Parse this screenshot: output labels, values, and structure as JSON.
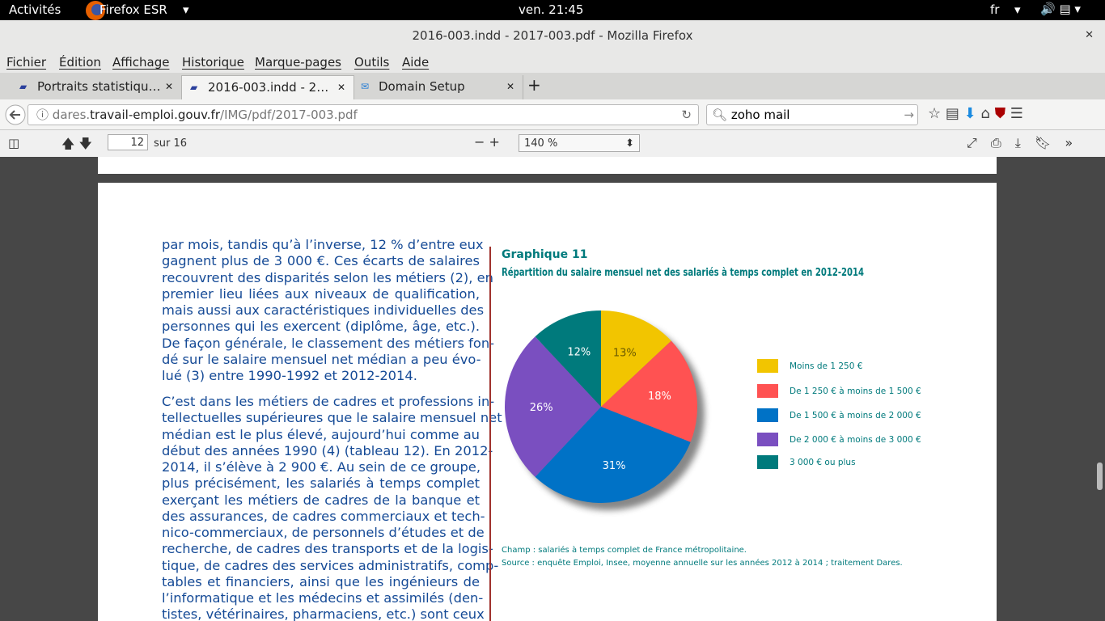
{
  "topbar": {
    "activities": "Activités",
    "app": "Firefox ESR",
    "clock": "ven. 21:45",
    "lang": "fr"
  },
  "window": {
    "title": "2016-003.indd - 2017-003.pdf - Mozilla Firefox"
  },
  "menu": [
    "Fichier",
    "Édition",
    "Affichage",
    "Historique",
    "Marque-pages",
    "Outils",
    "Aide"
  ],
  "tabs": [
    "Portraits statistiqu…",
    "2016-003.indd - 2…",
    "Domain Setup"
  ],
  "address": {
    "sub": "dares.",
    "host": "travail-emploi.gouv.fr",
    "path": "/IMG/pdf/2017-003.pdf"
  },
  "search": "zoho mail",
  "pdf_toolbar": {
    "page": "12",
    "total": "sur 16",
    "zoom": "140 %"
  },
  "document": {
    "paragraphs": [
      [
        "par mois, tandis qu’à l’inverse, 12 % d’entre eux",
        "gagnent plus de 3 000 €. Ces écarts de salaires",
        "recouvrent des disparités selon les métiers (2), en",
        "premier lieu liées aux niveaux de qualification,",
        "mais aussi aux caractéristiques individuelles des",
        "personnes qui les exercent (diplôme, âge, etc.).",
        "De façon générale, le classement des métiers fon-",
        "dé sur le salaire mensuel net médian a peu évo-",
        "lué (3) entre 1990-1992 et 2012-2014."
      ],
      [
        "C’est dans les métiers de cadres et professions in-",
        "tellectuelles supérieures que le salaire mensuel net",
        "médian est le plus élevé, aujourd’hui comme au",
        "début des années 1990 (4) (tableau 12). En 2012-",
        "2014, il s’élève à 2 900 €. Au sein de ce groupe,",
        "plus précisément, les salariés à temps complet",
        "exerçant les métiers de cadres de la banque et",
        "des assurances, de cadres commerciaux et tech-",
        "nico-commerciaux, de personnels d’études et de",
        "recherche, de cadres des transports et de la logis-",
        "tique, de cadres des services administratifs, comp-",
        "tables et financiers, ainsi que les ingénieurs de",
        "l’informatique et les médecins et assimilés (den-",
        "tistes, vétérinaires, pharmaciens, etc.) sont ceux"
      ]
    ]
  },
  "chart_data": {
    "type": "pie",
    "title": "Graphique 11",
    "subtitle": "Répartition du salaire mensuel net des salariés à temps complet en 2012-2014",
    "categories": [
      "Moins de 1 250 €",
      "De 1 250 € à moins de 1 500 €",
      "De 1 500 € à moins de 2 000 €",
      "De 2 000 € à moins de 3 000 €",
      "3 000 € ou plus"
    ],
    "values": [
      13,
      18,
      31,
      26,
      12
    ],
    "value_labels": [
      "13%",
      "18%",
      "31%",
      "26%",
      "12%"
    ],
    "colors": [
      "#f2c500",
      "#ff5252",
      "#0072c6",
      "#7a4fc0",
      "#007a7c"
    ],
    "label_colors": [
      "#6b5a00",
      "#ffffff",
      "#ffffff",
      "#ffffff",
      "#ffffff"
    ],
    "notes": [
      "Champ : salariés à temps complet de France métropolitaine.",
      "Source : enquête Emploi, Insee, moyenne annuelle sur les années 2012 à 2014 ; traitement Dares."
    ]
  }
}
